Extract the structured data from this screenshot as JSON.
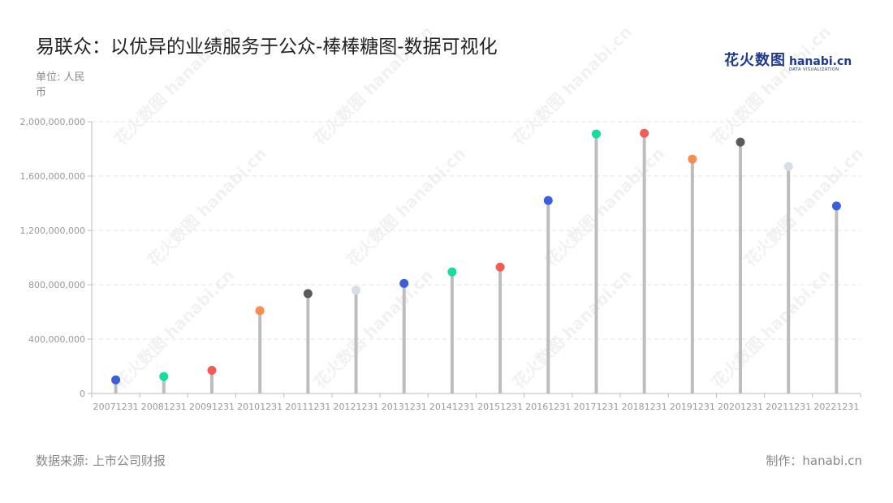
{
  "title": "易联众：以优异的业绩服务于公众-棒棒糖图-数据可视化",
  "unit_label": "单位: 人民币",
  "source": "数据来源: 上市公司财报",
  "credit": "制作：hanabi.cn",
  "brand": {
    "cn": "花火数图",
    "domain": "hanabi.cn",
    "tagline": "DATA VISUALIZATION"
  },
  "chart_data": {
    "type": "lollipop",
    "categories": [
      "20071231",
      "20081231",
      "20091231",
      "20101231",
      "20111231",
      "20121231",
      "20131231",
      "20141231",
      "20151231",
      "20161231",
      "20171231",
      "20181231",
      "20191231",
      "20201231",
      "20211231",
      "20221231"
    ],
    "values": [
      100000000,
      125000000,
      170000000,
      610000000,
      735000000,
      760000000,
      810000000,
      895000000,
      930000000,
      1420000000,
      1910000000,
      1915000000,
      1725000000,
      1850000000,
      1670000000,
      1380000000
    ],
    "point_colors": [
      "#3b5de0",
      "#16dca0",
      "#f25c54",
      "#fb8c50",
      "#5a5a5a",
      "#d9dde8",
      "#3b5de0",
      "#16dca0",
      "#f25c54",
      "#3b5de0",
      "#16dca0",
      "#f25c54",
      "#fb8c50",
      "#5a5a5a",
      "#d9dde8",
      "#3b5de0"
    ],
    "stick_color": "#bdbdbd",
    "ylim": [
      0,
      2000000000
    ],
    "yticks": [
      0,
      400000000,
      800000000,
      1200000000,
      1600000000,
      2000000000
    ],
    "ytick_labels": [
      "0",
      "400,000,000",
      "800,000,000",
      "1,200,000,000",
      "1,600,000,000",
      "2,000,000,000"
    ],
    "grid": true
  }
}
